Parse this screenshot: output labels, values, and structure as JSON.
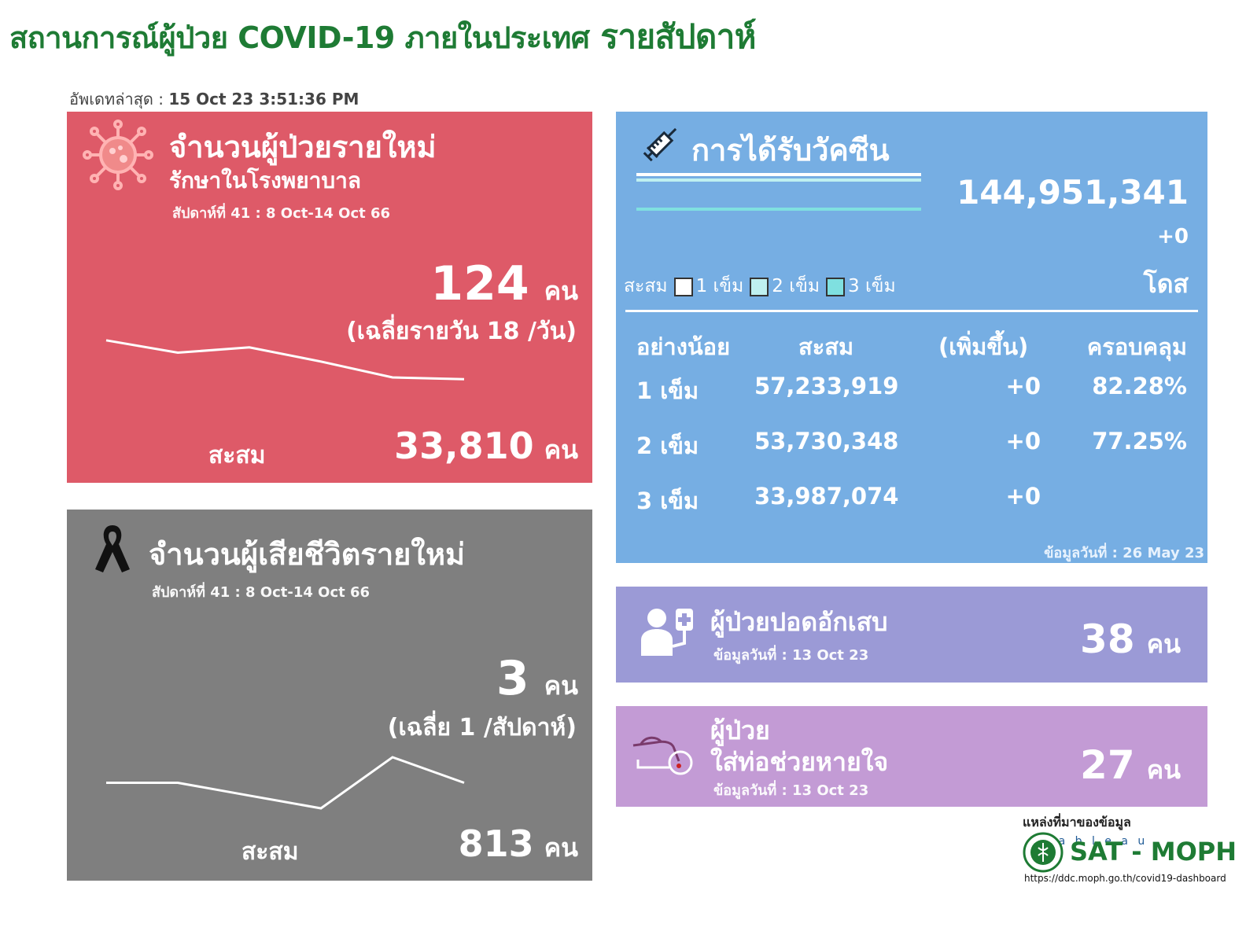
{
  "header": {
    "title": "สถานการณ์ผู้ป่วย COVID-19 ภายในประเทศ",
    "title_suffix": "รายสัปดาห์",
    "updated_label": "อัพเดทล่าสุด :",
    "updated_value": "15 Oct 23 3:51:36 PM"
  },
  "cases": {
    "title": "จำนวนผู้ป่วยรายใหม่",
    "subtitle": "รักษาในโรงพยาบาล",
    "week": "สัปดาห์ที่ 41 : 8 Oct-14 Oct 66",
    "new_value": "124",
    "unit": "คน",
    "average": "(เฉลี่ยรายวัน 18 /วัน)",
    "cum_label": "สะสม",
    "cum_value": "33,810",
    "trend": [
      133,
      126,
      129,
      121,
      112,
      111
    ]
  },
  "deaths": {
    "title": "จำนวนผู้เสียชีวิตรายใหม่",
    "week": "สัปดาห์ที่  41 : 8 Oct-14 Oct 66",
    "new_value": "3",
    "unit": "คน",
    "average": "(เฉลี่ย 1  /สัปดาห์)",
    "cum_label": "สะสม",
    "cum_value": "813",
    "trend": [
      4,
      4,
      3,
      2,
      6,
      4
    ]
  },
  "vaccine": {
    "title": "การได้รับวัคซีน",
    "total": "144,951,341",
    "increase": "+0",
    "dose_unit": "โดส",
    "legend_label": "สะสม",
    "legend": [
      {
        "label": "1 เข็ม",
        "color": "#ffffff"
      },
      {
        "label": "2 เข็ม",
        "color": "#bff0f0"
      },
      {
        "label": "3 เข็ม",
        "color": "#7fe0e0"
      }
    ],
    "bar_progress": [
      1.0,
      1.0,
      1.0
    ],
    "columns": [
      "อย่างน้อย",
      "สะสม",
      "(เพิ่มขึ้น)",
      "ครอบคลุม"
    ],
    "rows": [
      {
        "dose": "1 เข็ม",
        "cum": "57,233,919",
        "inc": "+0",
        "cov": "82.28%"
      },
      {
        "dose": "2 เข็ม",
        "cum": "53,730,348",
        "inc": "+0",
        "cov": "77.25%"
      },
      {
        "dose": "3 เข็ม",
        "cum": "33,987,074",
        "inc": "+0",
        "cov": ""
      }
    ],
    "data_date": "ข้อมูลวันที่ : 26 May 23"
  },
  "pneumonia": {
    "title": "ผู้ป่วยปอดอักเสบ",
    "data_date": "ข้อมูลวันที่ : 13 Oct 23",
    "value": "38",
    "unit": "คน"
  },
  "ventilator": {
    "title_line1": "ผู้ป่วย",
    "title_line2": "ใส่ท่อช่วยหายใจ",
    "data_date": "ข้อมูลวันที่ : 13 Oct 23",
    "value": "27",
    "unit": "คน"
  },
  "footer": {
    "source_label": "แหล่งที่มาของข้อมูล",
    "tableau": "+ a b l e a u",
    "org": "SAT - MOPH",
    "url": "https://ddc.moph.go.th/covid19-dashboard"
  },
  "colors": {
    "title_green": "#1e7b34",
    "cases_red": "#de5a68",
    "deaths_gray": "#7f7f7f",
    "vaccine_blue": "#76aee3",
    "pneumonia_purple": "#9b9ad6",
    "ventilator_purple": "#c39bd5"
  },
  "icons": [
    "virus-icon",
    "ribbon-icon",
    "syringe-icon",
    "patient-iv-icon",
    "ventilator-tube-icon",
    "moph-seal-icon"
  ]
}
